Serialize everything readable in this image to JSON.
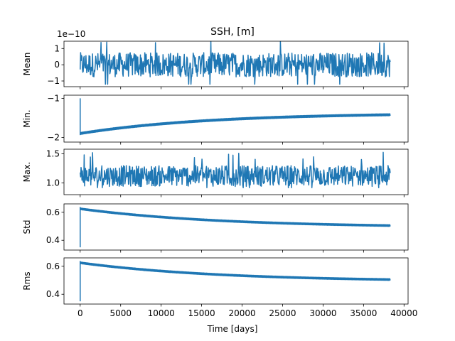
{
  "chart_data": {
    "type": "line",
    "title": "SSH, [m]",
    "xlabel": "Time [days]",
    "xlim": [
      -2000,
      40500
    ],
    "xticks": [
      "0",
      "5000",
      "10000",
      "15000",
      "20000",
      "25000",
      "30000",
      "35000",
      "40000"
    ],
    "xtick_values": [
      0,
      5000,
      10000,
      15000,
      20000,
      25000,
      30000,
      35000,
      40000
    ],
    "series_color": "#1f77b4",
    "subplots": [
      {
        "name": "mean",
        "ylabel": "Mean",
        "offset_text": "1e−10",
        "ylim": [
          -1.35,
          1.45
        ],
        "yticks": [
          -1,
          0,
          1
        ],
        "yticklabels": [
          "−1",
          "0",
          "1"
        ],
        "x_end": 38300,
        "style": "oscillating",
        "base": 0,
        "amp": 0.75,
        "amp_peak": 1.45,
        "amp_low": -1.2
      },
      {
        "name": "min",
        "ylabel": "Min.",
        "ylim": [
          -2.12,
          -0.92
        ],
        "yticks": [
          -1,
          -2
        ],
        "yticklabels": [
          "−1",
          "−2"
        ],
        "x_end": 38300,
        "style": "trend",
        "initial_spike": [
          -1.0,
          -1.93
        ],
        "trend_start": -1.9,
        "trend_end": -1.42,
        "band": 0.05
      },
      {
        "name": "max",
        "ylabel": "Max.",
        "ylim": [
          0.8,
          1.58
        ],
        "yticks": [
          1.0,
          1.5
        ],
        "yticklabels": [
          "1.0",
          "1.5"
        ],
        "x_end": 38300,
        "style": "oscillating",
        "base": 1.12,
        "amp": 0.18,
        "amp_peak": 1.55,
        "amp_low": 0.92
      },
      {
        "name": "std",
        "ylabel": "Std",
        "ylim": [
          0.33,
          0.66
        ],
        "yticks": [
          0.4,
          0.6
        ],
        "yticklabels": [
          "0.4",
          "0.6"
        ],
        "x_end": 38300,
        "style": "decay",
        "initial_spike": [
          0.35,
          0.635
        ],
        "decay_start": 0.625,
        "decay_end": 0.505,
        "band": 0.006
      },
      {
        "name": "rms",
        "ylabel": "Rms",
        "ylim": [
          0.33,
          0.66
        ],
        "yticks": [
          0.4,
          0.6
        ],
        "yticklabels": [
          "0.4",
          "0.6"
        ],
        "x_end": 38300,
        "style": "decay",
        "initial_spike": [
          0.35,
          0.635
        ],
        "decay_start": 0.625,
        "decay_end": 0.505,
        "band": 0.006
      }
    ]
  }
}
